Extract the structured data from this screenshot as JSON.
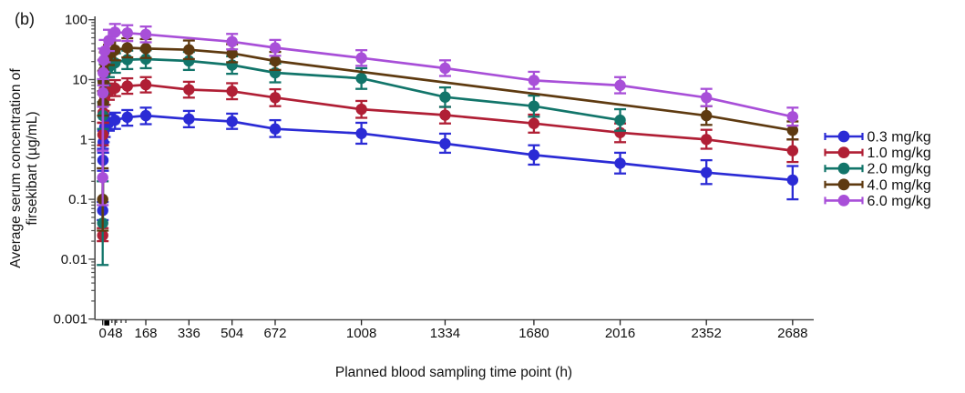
{
  "figure_label": "(b)",
  "axes": {
    "x": {
      "label": "Planned blood sampling time point (h)",
      "tick_values": [
        0,
        48,
        168,
        336,
        504,
        672,
        1008,
        1334,
        1680,
        2016,
        2352,
        2688
      ],
      "tick_labels": [
        "0",
        "48",
        "168",
        "336",
        "504",
        "672",
        "1008",
        "1334",
        "1680",
        "2016",
        "2352",
        "2688"
      ],
      "minor_ticks": [
        36,
        54,
        72,
        90
      ],
      "range": [
        -31,
        2770
      ]
    },
    "y": {
      "label_line1": "Average serum concentration of",
      "label_line2": "firsekibart (µg/mL)",
      "scale": "log",
      "tick_values": [
        100,
        10,
        1,
        0.1,
        0.01,
        0.001
      ],
      "tick_labels": [
        "100",
        "10",
        "1",
        "0.1",
        "0.01",
        "0.001"
      ],
      "range": [
        0.001,
        100
      ]
    }
  },
  "legend": [
    {
      "label": "0.3 mg/kg",
      "color": "#2B2BD5"
    },
    {
      "label": "1.0 mg/kg",
      "color": "#B01F35"
    },
    {
      "label": "2.0 mg/kg",
      "color": "#12756A"
    },
    {
      "label": "4.0 mg/kg",
      "color": "#5E3A10"
    },
    {
      "label": "6.0 mg/kg",
      "color": "#A84FD8"
    }
  ],
  "chart_data": {
    "type": "line",
    "title": "",
    "xlabel": "Planned blood sampling time point (h)",
    "ylabel": "Average serum concentration of firsekibart (µg/mL)",
    "yscale": "log",
    "ylim": [
      0.001,
      100
    ],
    "xlim": [
      -31,
      2770
    ],
    "grid": false,
    "legend_position": "right",
    "marker": "circle-with-error-bars",
    "baseline_marker": {
      "shape": "square",
      "color": "#000000",
      "x": 16,
      "note": "small black square on x-axis near origin"
    },
    "series": [
      {
        "name": "0.3 mg/kg",
        "color": "#2B2BD5",
        "x": [
          0,
          1,
          2,
          4,
          8,
          24,
          48,
          96,
          168,
          336,
          504,
          672,
          1008,
          1334,
          1680,
          2016,
          2352,
          2688
        ],
        "y": [
          0.065,
          0.45,
          0.9,
          1.3,
          1.6,
          1.9,
          2.1,
          2.35,
          2.5,
          2.2,
          2.0,
          1.5,
          1.26,
          0.85,
          0.55,
          0.4,
          0.28,
          0.21
        ],
        "err_lo": [
          0.045,
          0.3,
          0.6,
          0.9,
          1.1,
          1.4,
          1.5,
          1.7,
          1.8,
          1.6,
          1.5,
          1.1,
          0.85,
          0.6,
          0.38,
          0.27,
          0.18,
          0.1
        ],
        "err_hi": [
          0.09,
          0.7,
          1.4,
          1.9,
          2.2,
          2.6,
          2.8,
          3.1,
          3.4,
          3.0,
          2.7,
          2.1,
          1.9,
          1.25,
          0.8,
          0.6,
          0.45,
          0.36
        ]
      },
      {
        "name": "1.0 mg/kg",
        "color": "#B01F35",
        "x": [
          0,
          1,
          2,
          4,
          8,
          24,
          48,
          96,
          168,
          336,
          504,
          672,
          1008,
          1334,
          1680,
          2016,
          2352,
          2688
        ],
        "y": [
          0.025,
          1.2,
          2.8,
          4.2,
          5.2,
          6.3,
          7.2,
          7.8,
          8.2,
          6.8,
          6.4,
          5.0,
          3.2,
          2.55,
          1.85,
          1.3,
          1.0,
          0.65
        ],
        "err_lo": [
          0.02,
          0.8,
          1.9,
          3.0,
          3.8,
          4.6,
          5.3,
          5.8,
          6.1,
          5.0,
          4.7,
          3.6,
          2.3,
          1.85,
          1.3,
          0.9,
          0.7,
          0.42
        ],
        "err_hi": [
          0.033,
          1.9,
          4.2,
          6.0,
          7.2,
          8.6,
          9.8,
          10.5,
          11.0,
          9.2,
          8.7,
          6.9,
          4.4,
          3.5,
          2.6,
          1.85,
          1.45,
          1.0
        ]
      },
      {
        "name": "2.0 mg/kg",
        "color": "#12756A",
        "x": [
          0,
          1,
          2,
          4,
          8,
          24,
          48,
          96,
          168,
          336,
          504,
          672,
          1008,
          1334,
          1680,
          2016
        ],
        "y": [
          0.04,
          2.5,
          6.0,
          9.0,
          12,
          16,
          19,
          21.5,
          22,
          20.5,
          17.5,
          13,
          10.5,
          5.1,
          3.6,
          2.1
        ],
        "err_lo": [
          0.008,
          1.5,
          3.7,
          5.8,
          8.0,
          11,
          13,
          15,
          15.5,
          14.5,
          12.5,
          9.0,
          7.0,
          3.5,
          2.4,
          1.4
        ],
        "err_hi": [
          0.2,
          4.2,
          9.7,
          14,
          18,
          23.5,
          27.5,
          30.5,
          31,
          29,
          24.5,
          18.5,
          15.5,
          7.4,
          5.4,
          3.2
        ]
      },
      {
        "name": "4.0 mg/kg",
        "color": "#5E3A10",
        "x": [
          0,
          1,
          2,
          4,
          8,
          24,
          48,
          96,
          168,
          336,
          504,
          672,
          2352,
          2688
        ],
        "y": [
          0.1,
          4.0,
          9.0,
          14,
          19,
          26,
          31,
          34,
          33,
          31.5,
          27.5,
          20.5,
          2.5,
          1.42
        ],
        "err_lo": [
          0.03,
          2.5,
          5.7,
          9.0,
          12.5,
          17.5,
          21,
          23.5,
          23,
          22,
          19.5,
          14.5,
          1.75,
          1.0
        ],
        "err_hi": [
          0.33,
          6.4,
          14,
          21.5,
          28.5,
          38,
          45,
          49,
          47.5,
          45,
          39,
          29,
          3.6,
          2.0
        ]
      },
      {
        "name": "6.0 mg/kg",
        "color": "#A84FD8",
        "x": [
          0,
          1,
          2,
          4,
          8,
          24,
          48,
          96,
          168,
          504,
          672,
          1008,
          1334,
          1680,
          2016,
          2352,
          2688
        ],
        "y": [
          0.23,
          6.0,
          13,
          21,
          30,
          45,
          62,
          60,
          57,
          43,
          34,
          23,
          15.5,
          9.7,
          8.0,
          5.0,
          2.4
        ],
        "err_lo": [
          0.08,
          3.5,
          8.0,
          13.5,
          19.5,
          30,
          45,
          44,
          42,
          32,
          25,
          17,
          11.5,
          7.0,
          5.9,
          3.6,
          1.7
        ],
        "err_hi": [
          0.65,
          10.2,
          21,
          33,
          46,
          68,
          85,
          81,
          77,
          58,
          46,
          31,
          21,
          13.5,
          11,
          7.0,
          3.4
        ]
      }
    ]
  }
}
